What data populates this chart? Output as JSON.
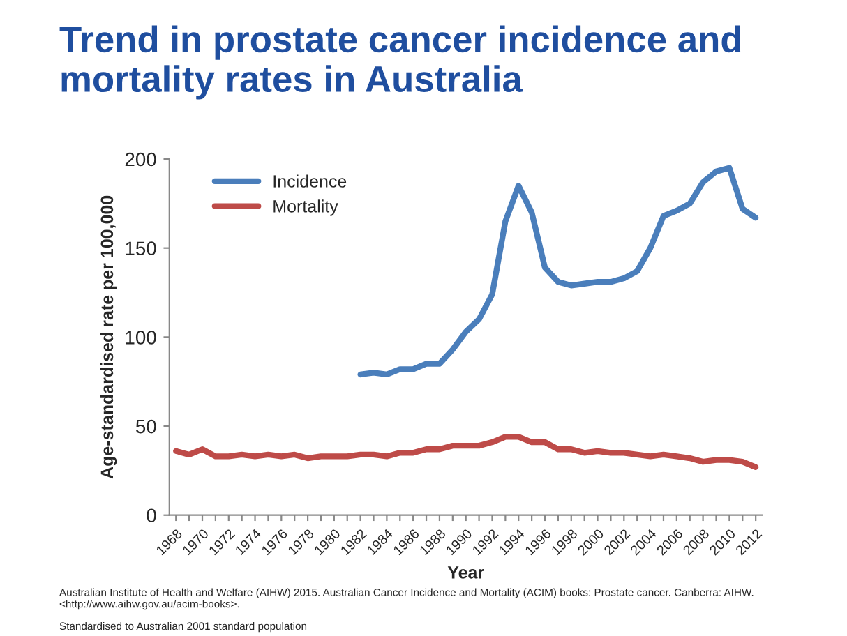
{
  "chart_data": {
    "type": "line",
    "title": "Trend in prostate cancer incidence and mortality rates in Australia",
    "xlabel": "Year",
    "ylabel": "Age-standardised rate per 100,000",
    "categories": [
      "1968",
      null,
      "1970",
      null,
      "1972",
      null,
      "1974",
      null,
      "1976",
      null,
      "1978",
      null,
      "1980",
      null,
      "1982",
      null,
      "1984",
      null,
      "1986",
      null,
      "1988",
      null,
      "1990",
      null,
      "1992",
      null,
      "1994",
      null,
      "1996",
      null,
      "1998",
      null,
      "2000",
      null,
      "2002",
      null,
      "2004",
      null,
      "2006",
      null,
      "2008",
      null,
      "2010",
      null,
      "2012"
    ],
    "series": [
      {
        "name": "Incidence",
        "color": "#4a7ebb",
        "values": [
          null,
          null,
          null,
          null,
          null,
          null,
          null,
          null,
          null,
          null,
          null,
          null,
          null,
          null,
          79,
          80,
          79,
          82,
          82,
          85,
          85,
          93,
          103,
          110,
          124,
          165,
          185,
          170,
          139,
          131,
          129,
          130,
          131,
          131,
          133,
          137,
          150,
          168,
          171,
          175,
          187,
          193,
          195,
          172,
          167
        ]
      },
      {
        "name": "Mortality",
        "color": "#be4b48",
        "values": [
          36,
          34,
          37,
          33,
          33,
          34,
          33,
          34,
          33,
          34,
          32,
          33,
          33,
          33,
          34,
          34,
          33,
          35,
          35,
          37,
          37,
          39,
          39,
          39,
          41,
          44,
          44,
          41,
          41,
          37,
          37,
          35,
          36,
          35,
          35,
          34,
          33,
          34,
          33,
          32,
          30,
          31,
          31,
          30,
          27
        ]
      }
    ],
    "ylim": [
      0,
      200
    ],
    "yticks": [
      0,
      50,
      100,
      150,
      200
    ],
    "grid": false,
    "legend": "top left",
    "marker": "none",
    "line_style": "solid",
    "annotations": [
      "Australian Institute of Health and Welfare (AIHW) 2015. Australian Cancer Incidence and Mortality (ACIM) books: Prostate cancer. Canberra: AIHW. <http://www.aihw.gov.au/acim-books>.",
      "Standardised to Australian 2001 standard population"
    ]
  }
}
